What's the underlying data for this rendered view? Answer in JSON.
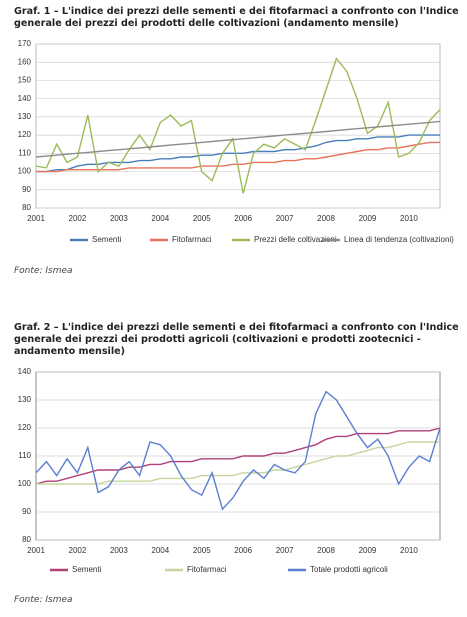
{
  "chart_data": [
    {
      "type": "line",
      "title": "Graf. 1 – L'indice dei prezzi delle sementi e dei fitofarmaci a confronto con l'Indice generale dei prezzi dei prodotti delle coltivazioni (andamento mensile)",
      "source": "Fonte: Ismea",
      "categories": [
        "2001",
        null,
        null,
        null,
        "2002",
        null,
        null,
        null,
        "2003",
        null,
        null,
        null,
        "2004",
        null,
        null,
        null,
        "2005",
        null,
        null,
        null,
        "2006",
        null,
        null,
        null,
        "2007",
        null,
        null,
        null,
        "2008",
        null,
        null,
        null,
        "2009",
        null,
        null,
        null,
        "2010",
        null,
        null,
        null
      ],
      "ylim": [
        80,
        170
      ],
      "yticks": [
        80,
        90,
        100,
        110,
        120,
        130,
        140,
        150,
        160,
        170
      ],
      "grid": true,
      "series": [
        {
          "name": "Sementi",
          "color": "#4a7ebb",
          "values": [
            100,
            100,
            101,
            101,
            103,
            104,
            104,
            105,
            105,
            105,
            106,
            106,
            107,
            107,
            108,
            108,
            109,
            109,
            110,
            110,
            110,
            111,
            111,
            111,
            112,
            112,
            113,
            114,
            116,
            117,
            117,
            118,
            118,
            119,
            119,
            119,
            120,
            120,
            120,
            120
          ]
        },
        {
          "name": "Fitofarmaci",
          "color": "#e8735a",
          "values": [
            100,
            100,
            100,
            101,
            101,
            101,
            101,
            101,
            101,
            102,
            102,
            102,
            102,
            102,
            102,
            102,
            103,
            103,
            103,
            104,
            104,
            105,
            105,
            105,
            106,
            106,
            107,
            107,
            108,
            109,
            110,
            111,
            112,
            112,
            113,
            113,
            114,
            115,
            116,
            116
          ]
        },
        {
          "name": "Prezzi delle coltivazioni",
          "color": "#9bbb59",
          "values": [
            103,
            102,
            115,
            105,
            108,
            131,
            100,
            105,
            103,
            112,
            120,
            112,
            127,
            131,
            125,
            128,
            100,
            95,
            110,
            118,
            88,
            110,
            115,
            113,
            118,
            115,
            112,
            128,
            145,
            162,
            155,
            140,
            121,
            125,
            138,
            108,
            110,
            116,
            128,
            134
          ]
        },
        {
          "name": "Linea di tendenza (coltivazioni)",
          "color": "#8c8c8c",
          "values": [
            108,
            108.5,
            109,
            109.5,
            110,
            110.5,
            111,
            111.5,
            112,
            112.5,
            113,
            113.5,
            114,
            114.5,
            115,
            115.5,
            116,
            116.5,
            117,
            117.5,
            118,
            118.5,
            119,
            119.5,
            120,
            120.5,
            121,
            121.5,
            122,
            122.5,
            123,
            123.5,
            124,
            124.5,
            125,
            125.5,
            126,
            126.5,
            127,
            127.5
          ]
        }
      ]
    },
    {
      "type": "line",
      "title": "Graf. 2 – L'indice dei prezzi delle sementi e dei fitofarmaci a confronto con l'Indice generale dei prezzi dei prodotti agricoli (coltivazioni e prodotti zootecnici - andamento mensile)",
      "source": "Fonte: Ismea",
      "categories": [
        "2001",
        null,
        null,
        null,
        "2002",
        null,
        null,
        null,
        "2003",
        null,
        null,
        null,
        "2004",
        null,
        null,
        null,
        "2005",
        null,
        null,
        null,
        "2006",
        null,
        null,
        null,
        "2007",
        null,
        null,
        null,
        "2008",
        null,
        null,
        null,
        "2009",
        null,
        null,
        null,
        "2010",
        null,
        null,
        null
      ],
      "ylim": [
        80,
        140
      ],
      "yticks": [
        80,
        90,
        100,
        110,
        120,
        130,
        140
      ],
      "grid": true,
      "series": [
        {
          "name": "Sementi",
          "color": "#b0407a",
          "values": [
            100,
            101,
            101,
            102,
            103,
            104,
            105,
            105,
            105,
            106,
            106,
            107,
            107,
            108,
            108,
            108,
            109,
            109,
            109,
            109,
            110,
            110,
            110,
            111,
            111,
            112,
            113,
            114,
            116,
            117,
            117,
            118,
            118,
            118,
            118,
            119,
            119,
            119,
            119,
            120
          ]
        },
        {
          "name": "Fitofarmaci",
          "color": "#c3d69b",
          "values": [
            100,
            100,
            100,
            100,
            100,
            100,
            100,
            101,
            101,
            101,
            101,
            101,
            102,
            102,
            102,
            102,
            103,
            103,
            103,
            103,
            104,
            104,
            104,
            105,
            105,
            106,
            107,
            108,
            109,
            110,
            110,
            111,
            112,
            113,
            113,
            114,
            115,
            115,
            115,
            115
          ]
        },
        {
          "name": "Totale prodotti agricoli",
          "color": "#5b7fd1",
          "values": [
            104,
            108,
            103,
            109,
            104,
            113,
            97,
            99,
            105,
            108,
            103,
            115,
            114,
            110,
            103,
            98,
            96,
            104,
            91,
            95,
            101,
            105,
            102,
            107,
            105,
            104,
            108,
            125,
            133,
            130,
            124,
            118,
            113,
            116,
            110,
            100,
            106,
            110,
            108,
            120
          ]
        }
      ]
    }
  ]
}
